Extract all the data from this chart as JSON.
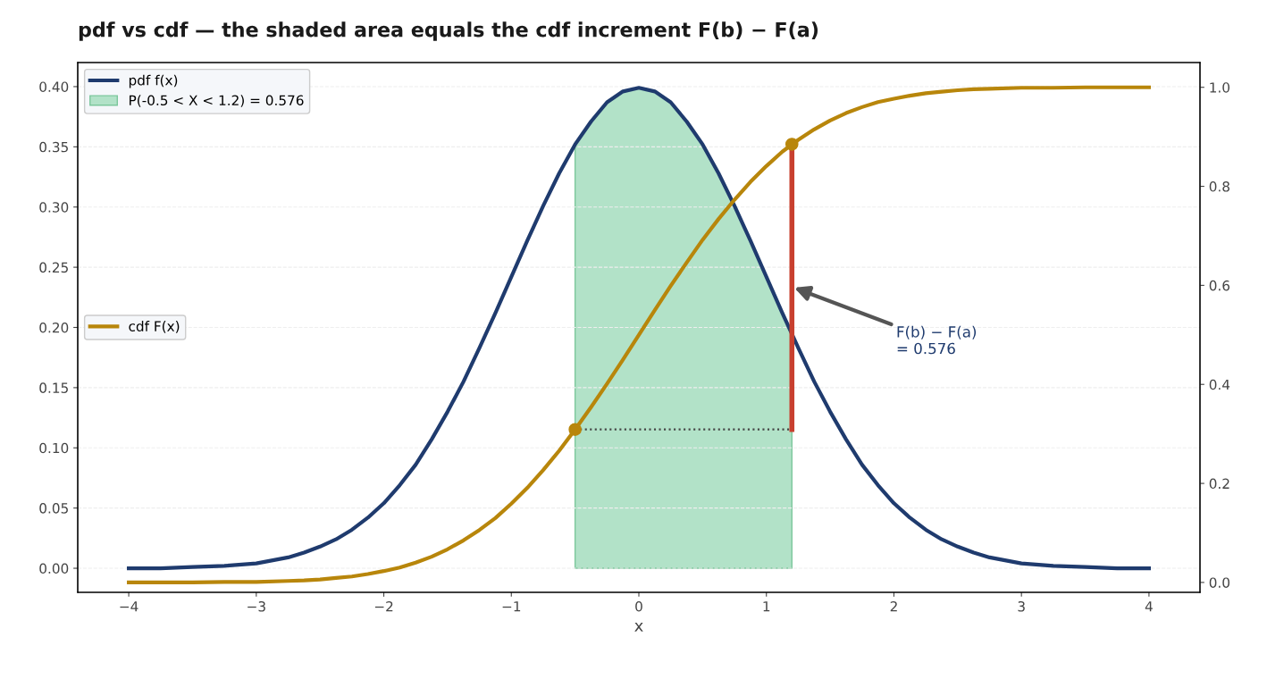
{
  "chart_data": {
    "type": "line",
    "title": "pdf vs cdf — the shaded area equals the cdf increment F(b) − F(a)",
    "xlabel": "x",
    "xlim": [
      -4.4,
      4.4
    ],
    "xticks": [
      {
        "value": -4,
        "label": "−4"
      },
      {
        "value": -3,
        "label": "−3"
      },
      {
        "value": -2,
        "label": "−2"
      },
      {
        "value": -1,
        "label": "−1"
      },
      0,
      1,
      2,
      3,
      4
    ],
    "ylim": [
      -0.02,
      0.42
    ],
    "yticks": [
      {
        "value": 0,
        "label": "0.00"
      },
      {
        "value": 0.05,
        "label": "0.05"
      },
      {
        "value": 0.1,
        "label": "0.10"
      },
      {
        "value": 0.15,
        "label": "0.15"
      },
      {
        "value": 0.2,
        "label": "0.20"
      },
      {
        "value": 0.25,
        "label": "0.25"
      },
      {
        "value": 0.3,
        "label": "0.30"
      },
      {
        "value": 0.35,
        "label": "0.35"
      },
      {
        "value": 0.4,
        "label": "0.40"
      }
    ],
    "y2lim": [
      -0.02,
      1.05
    ],
    "y2ticks": [
      {
        "value": 0,
        "label": "0.0"
      },
      {
        "value": 0.2,
        "label": "0.2"
      },
      {
        "value": 0.4,
        "label": "0.4"
      },
      {
        "value": 0.6,
        "label": "0.6"
      },
      {
        "value": 0.8,
        "label": "0.8"
      },
      {
        "value": 1,
        "label": "1.0"
      }
    ],
    "grid": "y",
    "legend": "top left",
    "annotations": [
      "F(b) − F(a)\n= 0.576"
    ],
    "series": [
      {
        "name": "pdf f(x)",
        "color": "#1f3b6e",
        "x": [
          -4,
          -3.75,
          -3.5,
          -3.25,
          -3,
          -2.75,
          -2.625,
          -2.5,
          -2.375,
          -2.25,
          -2.125,
          -2,
          -1.875,
          -1.75,
          -1.625,
          -1.5,
          -1.375,
          -1.25,
          -1.125,
          -1,
          -0.875,
          -0.75,
          -0.625,
          -0.5,
          -0.375,
          -0.25,
          -0.125,
          0,
          0.125,
          0.25,
          0.375,
          0.5,
          0.625,
          0.75,
          0.875,
          1,
          1.125,
          1.25,
          1.375,
          1.5,
          1.625,
          1.75,
          1.875,
          2,
          2.125,
          2.25,
          2.375,
          2.5,
          2.625,
          2.75,
          3,
          3.25,
          3.5,
          3.75,
          4
        ],
        "values": [
          0.0,
          0.0,
          0.001,
          0.002,
          0.004,
          0.009,
          0.013,
          0.018,
          0.024,
          0.032,
          0.042,
          0.054,
          0.069,
          0.086,
          0.107,
          0.13,
          0.155,
          0.183,
          0.212,
          0.242,
          0.272,
          0.301,
          0.328,
          0.352,
          0.371,
          0.387,
          0.396,
          0.399,
          0.396,
          0.387,
          0.371,
          0.352,
          0.328,
          0.301,
          0.272,
          0.242,
          0.212,
          0.183,
          0.155,
          0.13,
          0.107,
          0.086,
          0.069,
          0.054,
          0.042,
          0.032,
          0.024,
          0.018,
          0.013,
          0.009,
          0.004,
          0.002,
          0.001,
          0.0,
          0.0
        ]
      },
      {
        "type": "area",
        "name": "P(-0.5 < X < 1.2) = 0.576",
        "color": "#b2e2c8",
        "x": [
          -0.5,
          -0.375,
          -0.25,
          -0.125,
          0,
          0.125,
          0.25,
          0.375,
          0.5,
          0.625,
          0.75,
          0.875,
          1,
          1.1,
          1.2
        ],
        "values": [
          0.352,
          0.371,
          0.387,
          0.396,
          0.399,
          0.396,
          0.387,
          0.371,
          0.352,
          0.328,
          0.301,
          0.272,
          0.242,
          0.218,
          0.194
        ]
      },
      {
        "name": "cdf F(x)",
        "axis": "y2",
        "color": "#b8860b",
        "x": [
          -4,
          -3.75,
          -3.5,
          -3.25,
          -3,
          -2.75,
          -2.625,
          -2.5,
          -2.375,
          -2.25,
          -2.125,
          -2,
          -1.875,
          -1.75,
          -1.625,
          -1.5,
          -1.375,
          -1.25,
          -1.125,
          -1,
          -0.875,
          -0.75,
          -0.625,
          -0.5,
          -0.375,
          -0.25,
          -0.125,
          0,
          0.125,
          0.25,
          0.375,
          0.5,
          0.625,
          0.75,
          0.875,
          1,
          1.125,
          1.25,
          1.375,
          1.5,
          1.625,
          1.75,
          1.875,
          2,
          2.125,
          2.25,
          2.375,
          2.5,
          2.625,
          2.75,
          3,
          3.25,
          3.5,
          3.75,
          4
        ],
        "values": [
          0.0,
          0.0,
          0.0,
          0.001,
          0.001,
          0.003,
          0.004,
          0.006,
          0.009,
          0.012,
          0.017,
          0.023,
          0.03,
          0.04,
          0.052,
          0.067,
          0.085,
          0.106,
          0.13,
          0.159,
          0.191,
          0.227,
          0.266,
          0.309,
          0.354,
          0.401,
          0.45,
          0.5,
          0.55,
          0.599,
          0.646,
          0.692,
          0.734,
          0.773,
          0.809,
          0.841,
          0.87,
          0.894,
          0.915,
          0.933,
          0.948,
          0.96,
          0.97,
          0.977,
          0.983,
          0.988,
          0.991,
          0.994,
          0.996,
          0.997,
          0.999,
          0.999,
          1.0,
          1.0,
          1.0
        ]
      },
      {
        "axis": "y2",
        "line_style": "dotted",
        "color": "#444444",
        "x": [
          -0.5,
          1.2
        ],
        "values": [
          0.309,
          0.309
        ]
      },
      {
        "axis": "y2",
        "color": "#c8402f",
        "x": [
          1.2,
          1.2
        ],
        "values": [
          0.309,
          0.885
        ]
      },
      {
        "type": "scatter",
        "axis": "y2",
        "marker": "circle",
        "color": "#b8860b",
        "x": [
          -0.5,
          1.2
        ],
        "values": [
          0.309,
          0.885
        ]
      }
    ]
  }
}
